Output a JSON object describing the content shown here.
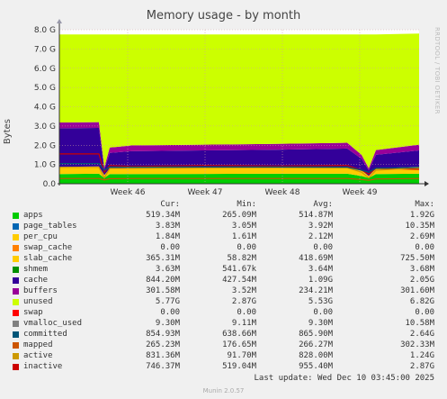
{
  "chart_data": {
    "type": "area",
    "title": "Memory usage - by month",
    "ylabel": "Bytes",
    "side_credit": "RRDTOOL / TOBI OETIKER",
    "ylim": [
      0,
      8
    ],
    "yunit": "G",
    "yticks": [
      "0.0",
      "1.0 G",
      "2.0 G",
      "3.0 G",
      "4.0 G",
      "5.0 G",
      "6.0 G",
      "7.0 G",
      "8.0 G"
    ],
    "ytick_values": [
      0,
      1,
      2,
      3,
      4,
      5,
      6,
      7,
      8
    ],
    "xticks": [
      "Week 46",
      "Week 47",
      "Week 48",
      "Week 49"
    ],
    "xtick_values": [
      0.19,
      0.405,
      0.62,
      0.835
    ],
    "grid": true,
    "x": [
      0,
      0.11,
      0.125,
      0.14,
      0.2,
      0.4,
      0.6,
      0.8,
      0.84,
      0.86,
      0.88,
      1.0
    ],
    "series": [
      {
        "name": "apps",
        "color": "#00cc00",
        "values": [
          0.5,
          0.52,
          0.3,
          0.5,
          0.5,
          0.51,
          0.52,
          0.52,
          0.4,
          0.3,
          0.5,
          0.52
        ]
      },
      {
        "name": "slab_cache",
        "color": "#ffcc00",
        "values": [
          0.38,
          0.38,
          0.15,
          0.3,
          0.34,
          0.35,
          0.35,
          0.36,
          0.3,
          0.1,
          0.3,
          0.37
        ]
      },
      {
        "name": "cache",
        "color": "#330099",
        "values": [
          2.0,
          2.0,
          0.3,
          0.8,
          0.85,
          0.87,
          0.9,
          0.95,
          0.6,
          0.3,
          0.7,
          0.84
        ]
      },
      {
        "name": "buffers",
        "color": "#990099",
        "values": [
          0.3,
          0.3,
          0.1,
          0.28,
          0.3,
          0.3,
          0.3,
          0.3,
          0.2,
          0.1,
          0.25,
          0.3
        ]
      },
      {
        "name": "unused",
        "color": "#ccff00",
        "values": [
          4.57,
          4.55,
          6.9,
          5.87,
          5.76,
          5.72,
          5.68,
          5.62,
          6.25,
          6.95,
          6.0,
          5.77
        ]
      }
    ],
    "legend_headers": {
      "cur": "Cur:",
      "min": "Min:",
      "avg": "Avg:",
      "max": "Max:"
    },
    "legend": [
      {
        "name": "apps",
        "color": "#00cc00",
        "cur": "519.34M",
        "min": "265.09M",
        "avg": "514.87M",
        "max": "1.92G"
      },
      {
        "name": "page_tables",
        "color": "#0066b3",
        "cur": "3.83M",
        "min": "3.05M",
        "avg": "3.92M",
        "max": "10.35M"
      },
      {
        "name": "per_cpu",
        "color": "#ffcc00",
        "cur": "1.84M",
        "min": "1.61M",
        "avg": "2.12M",
        "max": "2.69M"
      },
      {
        "name": "swap_cache",
        "color": "#ff8000",
        "cur": "0.00",
        "min": "0.00",
        "avg": "0.00",
        "max": "0.00"
      },
      {
        "name": "slab_cache",
        "color": "#ffcc00",
        "cur": "365.31M",
        "min": "58.82M",
        "avg": "418.69M",
        "max": "725.50M"
      },
      {
        "name": "shmem",
        "color": "#008f00",
        "cur": "3.63M",
        "min": "541.67k",
        "avg": "3.64M",
        "max": "3.68M"
      },
      {
        "name": "cache",
        "color": "#330099",
        "cur": "844.20M",
        "min": "427.54M",
        "avg": "1.09G",
        "max": "2.05G"
      },
      {
        "name": "buffers",
        "color": "#990099",
        "cur": "301.58M",
        "min": "3.52M",
        "avg": "234.21M",
        "max": "301.60M"
      },
      {
        "name": "unused",
        "color": "#ccff00",
        "cur": "5.77G",
        "min": "2.87G",
        "avg": "5.53G",
        "max": "6.82G"
      },
      {
        "name": "swap",
        "color": "#ff0000",
        "cur": "0.00",
        "min": "0.00",
        "avg": "0.00",
        "max": "0.00"
      },
      {
        "name": "vmalloc_used",
        "color": "#808080",
        "cur": "9.30M",
        "min": "9.11M",
        "avg": "9.30M",
        "max": "10.58M"
      },
      {
        "name": "committed",
        "color": "#005577",
        "cur": "854.93M",
        "min": "638.66M",
        "avg": "865.90M",
        "max": "2.64G"
      },
      {
        "name": "mapped",
        "color": "#cc5500",
        "cur": "265.23M",
        "min": "176.65M",
        "avg": "266.27M",
        "max": "302.33M"
      },
      {
        "name": "active",
        "color": "#cc9900",
        "cur": "831.36M",
        "min": "91.70M",
        "avg": "828.00M",
        "max": "1.24G"
      },
      {
        "name": "inactive",
        "color": "#cc0000",
        "cur": "746.37M",
        "min": "519.04M",
        "avg": "955.40M",
        "max": "2.87G"
      }
    ],
    "last_update": "Last update: Wed Dec 10 03:45:00 2025",
    "version": "Munin 2.0.57"
  }
}
